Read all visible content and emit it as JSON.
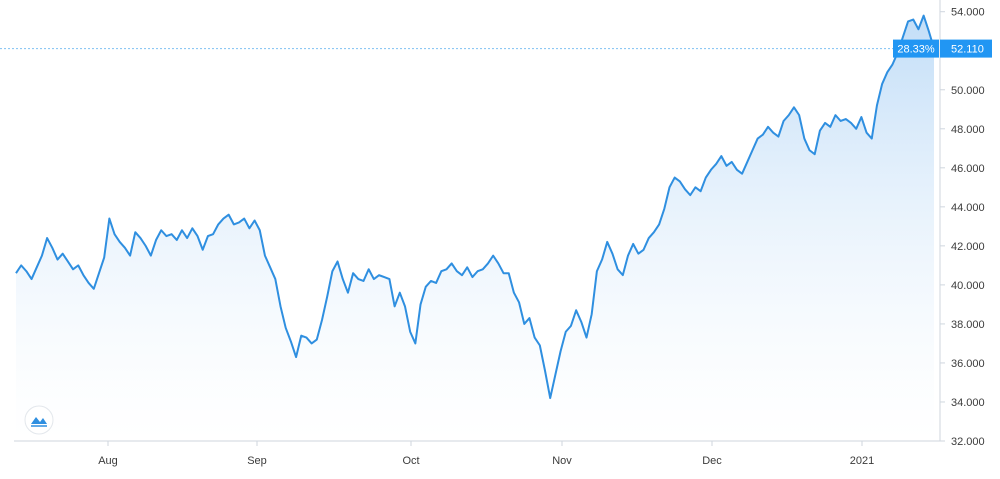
{
  "chart_data": {
    "type": "area",
    "x_ticks": [
      "Aug",
      "Sep",
      "Oct",
      "Nov",
      "Dec",
      "2021"
    ],
    "y_ticks": [
      "54.000",
      "52.000",
      "50.000",
      "48.000",
      "46.000",
      "44.000",
      "42.000",
      "40.000",
      "38.000",
      "36.000",
      "34.000",
      "32.000"
    ],
    "ylim": [
      32,
      54.6
    ],
    "last_value_label": "52.110",
    "change_label": "28.33%",
    "last_value": 52.11,
    "grid": false,
    "colors": {
      "line": "#2f8fe0",
      "fill": "#d6eafb",
      "badge": "#2196f3",
      "crosshair": "#7fc1f2"
    },
    "series": [
      {
        "values": [
          40.6,
          41.0,
          40.7,
          40.3,
          40.9,
          41.5,
          42.4,
          41.9,
          41.3,
          41.6,
          41.2,
          40.8,
          41.0,
          40.5,
          40.1,
          39.8,
          40.6,
          41.4,
          43.4,
          42.6,
          42.2,
          41.9,
          41.5,
          42.7,
          42.4,
          42.0,
          41.5,
          42.3,
          42.8,
          42.5,
          42.6,
          42.3,
          42.8,
          42.4,
          42.9,
          42.5,
          41.8,
          42.5,
          42.6,
          43.1,
          43.4,
          43.6,
          43.1,
          43.2,
          43.4,
          42.9,
          43.3,
          42.8,
          41.5,
          40.9,
          40.3,
          38.9,
          37.8,
          37.1,
          36.3,
          37.4,
          37.3,
          37.0,
          37.2,
          38.2,
          39.4,
          40.7,
          41.2,
          40.3,
          39.6,
          40.6,
          40.3,
          40.2,
          40.8,
          40.3,
          40.5,
          40.4,
          40.3,
          38.9,
          39.6,
          38.9,
          37.6,
          37.0,
          39.0,
          39.9,
          40.2,
          40.1,
          40.7,
          40.8,
          41.1,
          40.7,
          40.5,
          40.9,
          40.4,
          40.7,
          40.8,
          41.1,
          41.5,
          41.1,
          40.6,
          40.6,
          39.6,
          39.1,
          38.0,
          38.3,
          37.3,
          36.9,
          35.6,
          34.2,
          35.4,
          36.6,
          37.6,
          37.9,
          38.7,
          38.1,
          37.3,
          38.5,
          40.7,
          41.3,
          42.2,
          41.6,
          40.8,
          40.5,
          41.5,
          42.1,
          41.6,
          41.8,
          42.4,
          42.7,
          43.1,
          43.9,
          45.0,
          45.5,
          45.3,
          44.9,
          44.6,
          45.0,
          44.8,
          45.5,
          45.9,
          46.2,
          46.6,
          46.1,
          46.3,
          45.9,
          45.7,
          46.3,
          46.9,
          47.5,
          47.7,
          48.1,
          47.8,
          47.6,
          48.4,
          48.7,
          49.1,
          48.7,
          47.5,
          46.9,
          46.7,
          47.9,
          48.3,
          48.1,
          48.7,
          48.4,
          48.5,
          48.3,
          48.0,
          48.6,
          47.8,
          47.5,
          49.2,
          50.3,
          50.9,
          51.3,
          51.9,
          52.7,
          53.5,
          53.6,
          53.1,
          53.8,
          53.0,
          52.11
        ]
      }
    ]
  }
}
